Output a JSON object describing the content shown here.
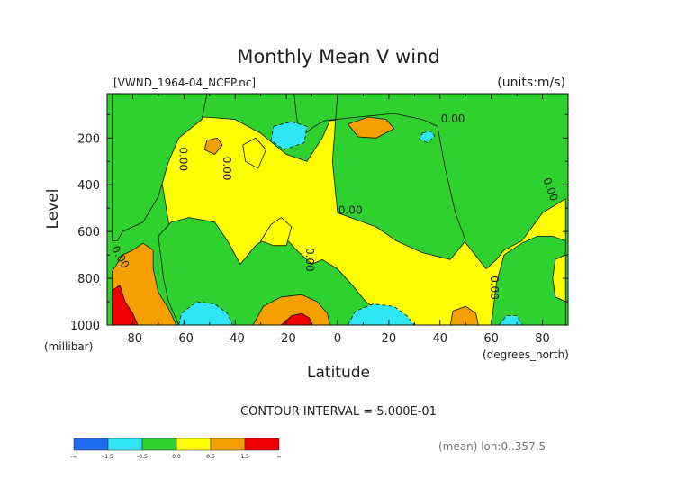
{
  "chart_data": {
    "type": "contour",
    "title": "Monthly Mean V wind",
    "file_label": "[VWND_1964-04_NCEP.nc]",
    "units_label": "(units:m/s)",
    "xlabel": "Latitude",
    "xunits": "(degrees_north)",
    "ylabel": "Level",
    "yunits": "(millibar)",
    "xlim": [
      -90,
      90
    ],
    "ylim": [
      1000,
      10
    ],
    "x_ticks": [
      -80,
      -60,
      -40,
      -20,
      0,
      20,
      40,
      60,
      80
    ],
    "x_tick_labels": [
      "-80",
      "-60",
      "-40",
      "-20",
      "0",
      "20",
      "40",
      "60",
      "80"
    ],
    "y_ticks": [
      200,
      400,
      600,
      800,
      1000
    ],
    "y_tick_labels": [
      "200",
      "400",
      "600",
      "800",
      "1000"
    ],
    "contour_interval_text": "CONTOUR INTERVAL = 5.000E-01",
    "footer_text": "(mean) lon:0..357.5",
    "zero_labels": [
      {
        "text": "0.00",
        "x": 45,
        "y": 120,
        "rot": 0
      },
      {
        "text": "0.00",
        "x": 5,
        "y": 510,
        "rot": 0
      },
      {
        "text": "0.00",
        "x": -60.5,
        "y": 290,
        "rot": 90
      },
      {
        "text": "0.00",
        "x": -43.5,
        "y": 330,
        "rot": 90
      },
      {
        "text": "0.00",
        "x": -11,
        "y": 720,
        "rot": 90
      },
      {
        "text": "0.00",
        "x": 61,
        "y": 840,
        "rot": 90
      },
      {
        "text": "0.00",
        "x": 83,
        "y": 420,
        "rot": 70
      },
      {
        "text": "0.00",
        "x": -85,
        "y": 710,
        "rot": 60
      }
    ],
    "levels": [
      -1.5,
      -0.5,
      0.0,
      0.5,
      1.5
    ],
    "colorbar": {
      "colors": [
        "#1e6cf0",
        "#2ee6f5",
        "#2ed12e",
        "#ffff00",
        "#f5a000",
        "#f00000"
      ],
      "labels": [
        "-∞",
        "-1.5",
        "-0.5",
        "0.0",
        "0.5",
        "1.5",
        "∞"
      ]
    },
    "regions": [
      {
        "name": "positive-plateau",
        "value": 0.25,
        "points": [
          [
            -74,
            120
          ],
          [
            -52,
            110
          ],
          [
            -40,
            120
          ],
          [
            -30,
            180
          ],
          [
            -20,
            270
          ],
          [
            -12,
            300
          ],
          [
            -6,
            200
          ],
          [
            -3,
            125
          ],
          [
            10,
            120
          ],
          [
            30,
            140
          ],
          [
            38,
            170
          ],
          [
            36,
            280
          ],
          [
            40,
            420
          ],
          [
            48,
            620
          ],
          [
            58,
            760
          ],
          [
            62,
            720
          ],
          [
            65,
            680
          ],
          [
            72,
            640
          ],
          [
            80,
            520
          ],
          [
            89,
            460
          ],
          [
            89,
            1000
          ],
          [
            -62,
            1000
          ],
          [
            -62,
            700
          ],
          [
            -66,
            560
          ],
          [
            -70,
            300
          ]
        ]
      },
      {
        "name": "positive-south-lobe",
        "value": 0.25,
        "points": [
          [
            -37,
            230
          ],
          [
            -32,
            200
          ],
          [
            -28,
            250
          ],
          [
            -31,
            330
          ],
          [
            -36,
            300
          ]
        ]
      },
      {
        "name": "negative-equatorial-tongue",
        "value": -0.25,
        "points": [
          [
            -17,
            10
          ],
          [
            0,
            10
          ],
          [
            -2,
            300
          ],
          [
            0,
            520
          ],
          [
            15,
            580
          ],
          [
            23,
            640
          ],
          [
            33,
            690
          ],
          [
            44,
            720
          ],
          [
            50,
            640
          ],
          [
            46,
            520
          ],
          [
            42,
            330
          ],
          [
            39,
            150
          ],
          [
            33,
            120
          ],
          [
            22,
            95
          ],
          [
            8,
            110
          ],
          [
            -5,
            125
          ],
          [
            -9,
            150
          ],
          [
            -15,
            200
          ]
        ]
      },
      {
        "name": "negative-upper-left",
        "value": -0.25,
        "points": [
          [
            -88,
            10
          ],
          [
            -51,
            10
          ],
          [
            -53,
            120
          ],
          [
            -62,
            200
          ],
          [
            -66,
            300
          ],
          [
            -70,
            450
          ],
          [
            -76,
            560
          ],
          [
            -84,
            600
          ],
          [
            -86,
            640
          ],
          [
            -88,
            640
          ]
        ]
      },
      {
        "name": "negative-midlatitude",
        "value": -0.25,
        "points": [
          [
            -70,
            620
          ],
          [
            -65,
            560
          ],
          [
            -58,
            540
          ],
          [
            -48,
            560
          ],
          [
            -43,
            640
          ],
          [
            -38,
            740
          ],
          [
            -32,
            660
          ],
          [
            -27,
            620
          ],
          [
            -21,
            620
          ],
          [
            -16,
            680
          ],
          [
            -10,
            740
          ],
          [
            -6,
            720
          ],
          [
            0,
            760
          ],
          [
            5,
            820
          ],
          [
            11,
            900
          ],
          [
            19,
            960
          ],
          [
            20,
            1000
          ],
          [
            -62,
            1000
          ],
          [
            -66,
            900
          ],
          [
            -68,
            800
          ]
        ]
      },
      {
        "name": "negative-right-column",
        "value": -0.25,
        "points": [
          [
            60,
            1000
          ],
          [
            62,
            820
          ],
          [
            65,
            700
          ],
          [
            72,
            650
          ],
          [
            78,
            620
          ],
          [
            84,
            620
          ],
          [
            89,
            640
          ],
          [
            89,
            1000
          ]
        ]
      },
      {
        "name": "positive-midwest-bump",
        "value": 0.25,
        "points": [
          [
            -30,
            640
          ],
          [
            -26,
            570
          ],
          [
            -22,
            540
          ],
          [
            -18,
            580
          ],
          [
            -20,
            660
          ],
          [
            -25,
            660
          ]
        ]
      },
      {
        "name": "strong-positive-polar",
        "value": 1.0,
        "points": [
          [
            -88,
            770
          ],
          [
            -84,
            700
          ],
          [
            -80,
            680
          ],
          [
            -76,
            650
          ],
          [
            -72,
            680
          ],
          [
            -72,
            760
          ],
          [
            -70,
            860
          ],
          [
            -66,
            930
          ],
          [
            -63,
            1000
          ],
          [
            -88,
            1000
          ]
        ]
      },
      {
        "name": "extreme-positive-polar",
        "value": 1.8,
        "points": [
          [
            -88,
            850
          ],
          [
            -85,
            830
          ],
          [
            -83,
            900
          ],
          [
            -80,
            950
          ],
          [
            -78,
            1000
          ],
          [
            -88,
            1000
          ]
        ]
      },
      {
        "name": "positive-upper-patch",
        "value": 1.0,
        "points": [
          [
            4,
            140
          ],
          [
            12,
            110
          ],
          [
            19,
            120
          ],
          [
            22,
            160
          ],
          [
            15,
            200
          ],
          [
            8,
            195
          ]
        ]
      },
      {
        "name": "positive-west-patch",
        "value": 1.0,
        "points": [
          [
            -51,
            210
          ],
          [
            -47,
            200
          ],
          [
            -45,
            230
          ],
          [
            -48,
            270
          ],
          [
            -52,
            250
          ]
        ]
      },
      {
        "name": "negative-upper-core",
        "value": -1.0,
        "points": [
          [
            -25,
            150
          ],
          [
            -18,
            130
          ],
          [
            -12,
            150
          ],
          [
            -13,
            220
          ],
          [
            -21,
            250
          ],
          [
            -26,
            210
          ]
        ]
      },
      {
        "name": "negative-small-cell",
        "value": -1.0,
        "points": [
          [
            33,
            180
          ],
          [
            36,
            170
          ],
          [
            38,
            190
          ],
          [
            35,
            220
          ],
          [
            32,
            205
          ]
        ]
      },
      {
        "name": "negative-lower-left",
        "value": -1.0,
        "points": [
          [
            -62,
            1000
          ],
          [
            -61,
            950
          ],
          [
            -55,
            900
          ],
          [
            -48,
            910
          ],
          [
            -43,
            950
          ],
          [
            -41,
            1000
          ]
        ]
      },
      {
        "name": "strong-positive-lower",
        "value": 1.0,
        "points": [
          [
            -33,
            1000
          ],
          [
            -29,
            920
          ],
          [
            -22,
            880
          ],
          [
            -14,
            870
          ],
          [
            -8,
            900
          ],
          [
            -4,
            950
          ],
          [
            -3,
            1000
          ]
        ]
      },
      {
        "name": "extreme-positive-lower",
        "value": 1.8,
        "points": [
          [
            -22,
            1000
          ],
          [
            -18,
            960
          ],
          [
            -14,
            950
          ],
          [
            -11,
            970
          ],
          [
            -10,
            1000
          ]
        ]
      },
      {
        "name": "negative-lower-equator",
        "value": -1.0,
        "points": [
          [
            4,
            1000
          ],
          [
            7,
            940
          ],
          [
            14,
            910
          ],
          [
            22,
            920
          ],
          [
            27,
            960
          ],
          [
            30,
            1000
          ]
        ]
      },
      {
        "name": "positive-lower-right",
        "value": 1.0,
        "points": [
          [
            44,
            1000
          ],
          [
            45,
            940
          ],
          [
            50,
            920
          ],
          [
            54,
            950
          ],
          [
            55,
            1000
          ]
        ]
      },
      {
        "name": "negative-small-lower",
        "value": -1.0,
        "points": [
          [
            63,
            1000
          ],
          [
            66,
            960
          ],
          [
            70,
            960
          ],
          [
            72,
            1000
          ]
        ]
      },
      {
        "name": "positive-far-right",
        "value": 0.25,
        "points": [
          [
            85,
            720
          ],
          [
            89,
            700
          ],
          [
            89,
            900
          ],
          [
            85,
            880
          ],
          [
            84,
            800
          ]
        ]
      }
    ]
  }
}
